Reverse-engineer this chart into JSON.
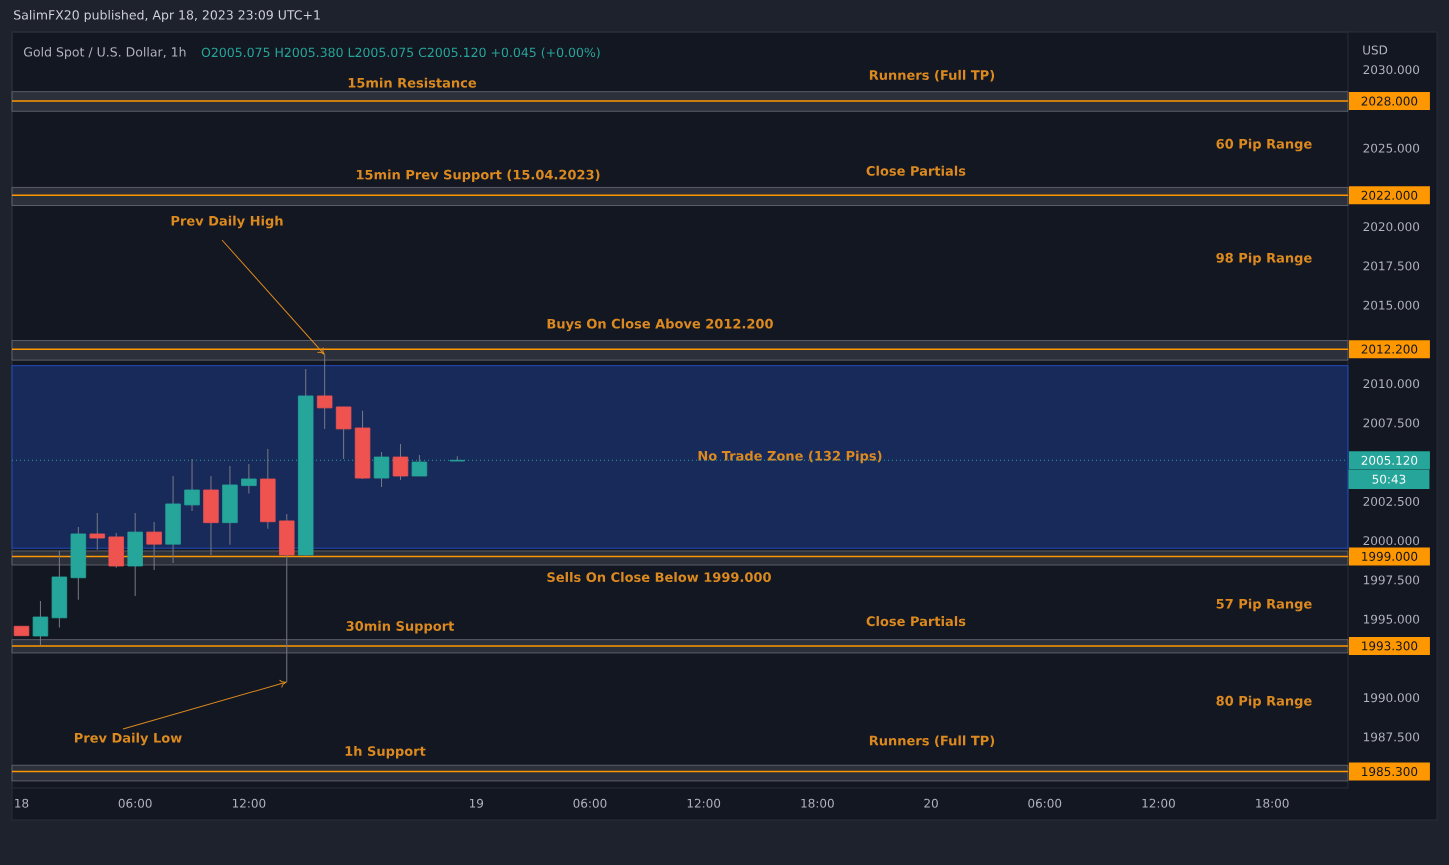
{
  "chart_data": {
    "type": "candlestick",
    "title": "Gold Spot / U.S. Dollar, 1h",
    "subtitle": "O2005.075 H2005.380 L2005.075 C2005.120 +0.045 (+0.00%)",
    "ylabel": "USD",
    "x": [
      "2023-04-18T00:00",
      "2023-04-18T01:00",
      "2023-04-18T02:00",
      "2023-04-18T03:00",
      "2023-04-18T04:00",
      "2023-04-18T05:00",
      "2023-04-18T06:00",
      "2023-04-18T07:00",
      "2023-04-18T08:00",
      "2023-04-18T09:00",
      "2023-04-18T10:00",
      "2023-04-18T11:00",
      "2023-04-18T12:00",
      "2023-04-18T13:00",
      "2023-04-18T14:00",
      "2023-04-18T15:00",
      "2023-04-18T16:00",
      "2023-04-18T17:00",
      "2023-04-18T18:00",
      "2023-04-18T19:00",
      "2023-04-18T20:00",
      "2023-04-18T21:00",
      "2023-04-18T23:00"
    ],
    "ohlc": [
      [
        1994.55,
        1994.55,
        1993.95,
        1993.95
      ],
      [
        1993.93,
        1996.16,
        1993.36,
        1995.14
      ],
      [
        1995.09,
        1999.34,
        1994.48,
        1997.69
      ],
      [
        1997.64,
        2000.87,
        1996.24,
        2000.43
      ],
      [
        2000.43,
        2001.77,
        1999.43,
        2000.17
      ],
      [
        2000.24,
        2000.49,
        1998.28,
        1998.39
      ],
      [
        1998.39,
        2001.77,
        1996.48,
        2000.55
      ],
      [
        2000.55,
        2001.19,
        1998.13,
        1999.78
      ],
      [
        1999.78,
        2004.12,
        1998.58,
        2002.34
      ],
      [
        2002.28,
        2005.21,
        2001.89,
        2003.23
      ],
      [
        2003.23,
        2004.12,
        1999.09,
        2001.15
      ],
      [
        2001.15,
        2004.76,
        1999.74,
        2003.55
      ],
      [
        2003.51,
        2004.89,
        2003.0,
        2003.93
      ],
      [
        2003.93,
        2005.84,
        2000.76,
        2001.21
      ],
      [
        2001.26,
        2001.7,
        1991.0,
        1999.09
      ],
      [
        1999.09,
        2010.94,
        1999.02,
        2009.22
      ],
      [
        2009.22,
        2011.84,
        2007.12,
        2008.46
      ],
      [
        2008.52,
        2008.52,
        2005.21,
        2007.12
      ],
      [
        2007.18,
        2008.27,
        2003.93,
        2003.99
      ],
      [
        2003.99,
        2005.65,
        2003.42,
        2005.33
      ],
      [
        2005.33,
        2006.16,
        2003.87,
        2004.12
      ],
      [
        2004.12,
        2005.46,
        2004.12,
        2005.01
      ],
      [
        2005.075,
        2005.38,
        2005.075,
        2005.12
      ]
    ],
    "colors": [
      "#ef5350",
      "#26a69a",
      "#26a69a",
      "#26a69a",
      "#ef5350",
      "#ef5350",
      "#26a69a",
      "#ef5350",
      "#26a69a",
      "#26a69a",
      "#ef5350",
      "#26a69a",
      "#26a69a",
      "#ef5350",
      "#ef5350",
      "#26a69a",
      "#ef5350",
      "#ef5350",
      "#ef5350",
      "#26a69a",
      "#ef5350",
      "#26a69a",
      "#26a69a"
    ],
    "xlim": [
      "2023-04-17T23:30",
      "2023-04-20T22:00"
    ],
    "xticks": [
      {
        "value": "2023-04-18T00:00",
        "label": "18"
      },
      {
        "value": "2023-04-18T06:00",
        "label": "06:00"
      },
      {
        "value": "2023-04-18T12:00",
        "label": "12:00"
      },
      {
        "value": "2023-04-19T00:00",
        "label": "19"
      },
      {
        "value": "2023-04-19T06:00",
        "label": "06:00"
      },
      {
        "value": "2023-04-19T12:00",
        "label": "12:00"
      },
      {
        "value": "2023-04-19T18:00",
        "label": "18:00"
      },
      {
        "value": "2023-04-20T00:00",
        "label": "20"
      },
      {
        "value": "2023-04-20T06:00",
        "label": "06:00"
      },
      {
        "value": "2023-04-20T12:00",
        "label": "12:00"
      },
      {
        "value": "2023-04-20T18:00",
        "label": "18:00"
      }
    ],
    "ylim": [
      1984.25,
      2032.4
    ],
    "yticks": [
      {
        "value": 2030,
        "label": "2030.000"
      },
      {
        "value": 2025,
        "label": "2025.000"
      },
      {
        "value": 2020,
        "label": "2020.000"
      },
      {
        "value": 2017.5,
        "label": "2017.500"
      },
      {
        "value": 2015,
        "label": "2015.000"
      },
      {
        "value": 2010,
        "label": "2010.000"
      },
      {
        "value": 2007.5,
        "label": "2007.500"
      },
      {
        "value": 2002.5,
        "label": "2002.500"
      },
      {
        "value": 2000,
        "label": "2000.000"
      },
      {
        "value": 1997.5,
        "label": "1997.500"
      },
      {
        "value": 1995,
        "label": "1995.000"
      },
      {
        "value": 1990,
        "label": "1990.000"
      },
      {
        "value": 1987.5,
        "label": "1987.500"
      }
    ],
    "bands": [
      {
        "axis": "y",
        "from": 2027.35,
        "to": 2028.6,
        "color": "#787b86"
      },
      {
        "axis": "y",
        "from": 2021.35,
        "to": 2022.5,
        "color": "#787b86"
      },
      {
        "axis": "y",
        "from": 2011.5,
        "to": 2012.75,
        "color": "#787b86"
      },
      {
        "axis": "y",
        "from": 1999.52,
        "to": 2011.15,
        "color": "#2962ff",
        "label": "No Trade Zone (132 Pips)"
      },
      {
        "axis": "y",
        "from": 1998.45,
        "to": 1999.35,
        "color": "#787b86"
      },
      {
        "axis": "y",
        "from": 1992.85,
        "to": 1993.7,
        "color": "#787b86"
      },
      {
        "axis": "y",
        "from": 1984.7,
        "to": 1985.7,
        "color": "#787b86"
      }
    ],
    "ref_lines": [
      {
        "axis": "y",
        "value": 2028,
        "label": "2028.000",
        "color": "#ff9800"
      },
      {
        "axis": "y",
        "value": 2022,
        "label": "2022.000",
        "color": "#ff9800"
      },
      {
        "axis": "y",
        "value": 2012.2,
        "label": "2012.200",
        "color": "#ff9800"
      },
      {
        "axis": "y",
        "value": 1999,
        "label": "1999.000",
        "color": "#ff9800"
      },
      {
        "axis": "y",
        "value": 1993.3,
        "label": "1993.300",
        "color": "#ff9800"
      },
      {
        "axis": "y",
        "value": 1985.3,
        "label": "1985.300",
        "color": "#ff9800"
      },
      {
        "axis": "y",
        "value": 2005.12,
        "label": "2005.120",
        "color": "#26a69a",
        "line_style": "dotted"
      }
    ],
    "annotations": [
      "SalimFX20 published, Apr 18, 2023 23:09 UTC+1",
      {
        "text": "15min Resistance",
        "y": 2028
      },
      {
        "text": "Runners (Full TP)",
        "y": 2028
      },
      "60 Pip Range",
      {
        "text": "15min Prev Support (15.04.2023)",
        "y": 2022
      },
      {
        "text": "Close Partials",
        "y": 2022
      },
      "98 Pip Range",
      {
        "text": "Prev Daily High",
        "x": "2023-04-18T16:00",
        "y": 2011.84
      },
      {
        "text": "Buys On Close Above 2012.200",
        "y": 2012.2
      },
      {
        "text": "Sells On Close Below 1999.000",
        "y": 1999
      },
      "57 Pip Range",
      {
        "text": "30min Support",
        "y": 1993.3
      },
      {
        "text": "Close Partials",
        "y": 1993.3
      },
      "80 Pip Range",
      {
        "text": "Prev Daily Low",
        "x": "2023-04-18T14:00",
        "y": 1991.0
      },
      {
        "text": "1h Support",
        "y": 1985.3
      },
      {
        "text": "Runners (Full TP)",
        "y": 1985.3
      },
      "50:43"
    ]
  }
}
